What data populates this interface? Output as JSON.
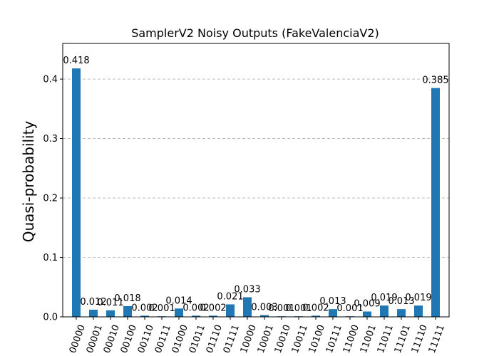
{
  "chart_data": {
    "type": "bar",
    "title": "SamplerV2 Noisy Outputs (FakeValenciaV2)",
    "xlabel": "",
    "ylabel": "Quasi-probability",
    "ylim": [
      0,
      0.46
    ],
    "yticks": [
      0.0,
      0.1,
      0.2,
      0.3,
      0.4
    ],
    "ytick_labels": [
      "0.0",
      "0.1",
      "0.2",
      "0.3",
      "0.4"
    ],
    "grid": "y-dashed",
    "bar_color": "#1f77b4",
    "categories": [
      "00000",
      "00001",
      "00010",
      "00100",
      "00110",
      "00111",
      "01000",
      "01011",
      "01110",
      "01111",
      "10000",
      "10001",
      "10010",
      "10011",
      "10100",
      "10111",
      "11000",
      "11001",
      "11011",
      "11101",
      "11110",
      "11111"
    ],
    "values": [
      0.418,
      0.012,
      0.011,
      0.018,
      0.002,
      0.001,
      0.014,
      0.002,
      0.002,
      0.021,
      0.033,
      0.003,
      0.001,
      0.001,
      0.002,
      0.013,
      0.001,
      0.009,
      0.019,
      0.013,
      0.019,
      0.385
    ],
    "data_labels": [
      "0.418",
      "0.012",
      "0.011",
      "0.018",
      "0.002",
      "0.001",
      "0.014",
      "0.002",
      "0.002",
      "0.021",
      "0.033",
      "0.003",
      "0.001",
      "0.001",
      "0.002",
      "0.013",
      "0.001",
      "0.009",
      "0.019",
      "0.013",
      "0.019",
      "0.385"
    ]
  }
}
